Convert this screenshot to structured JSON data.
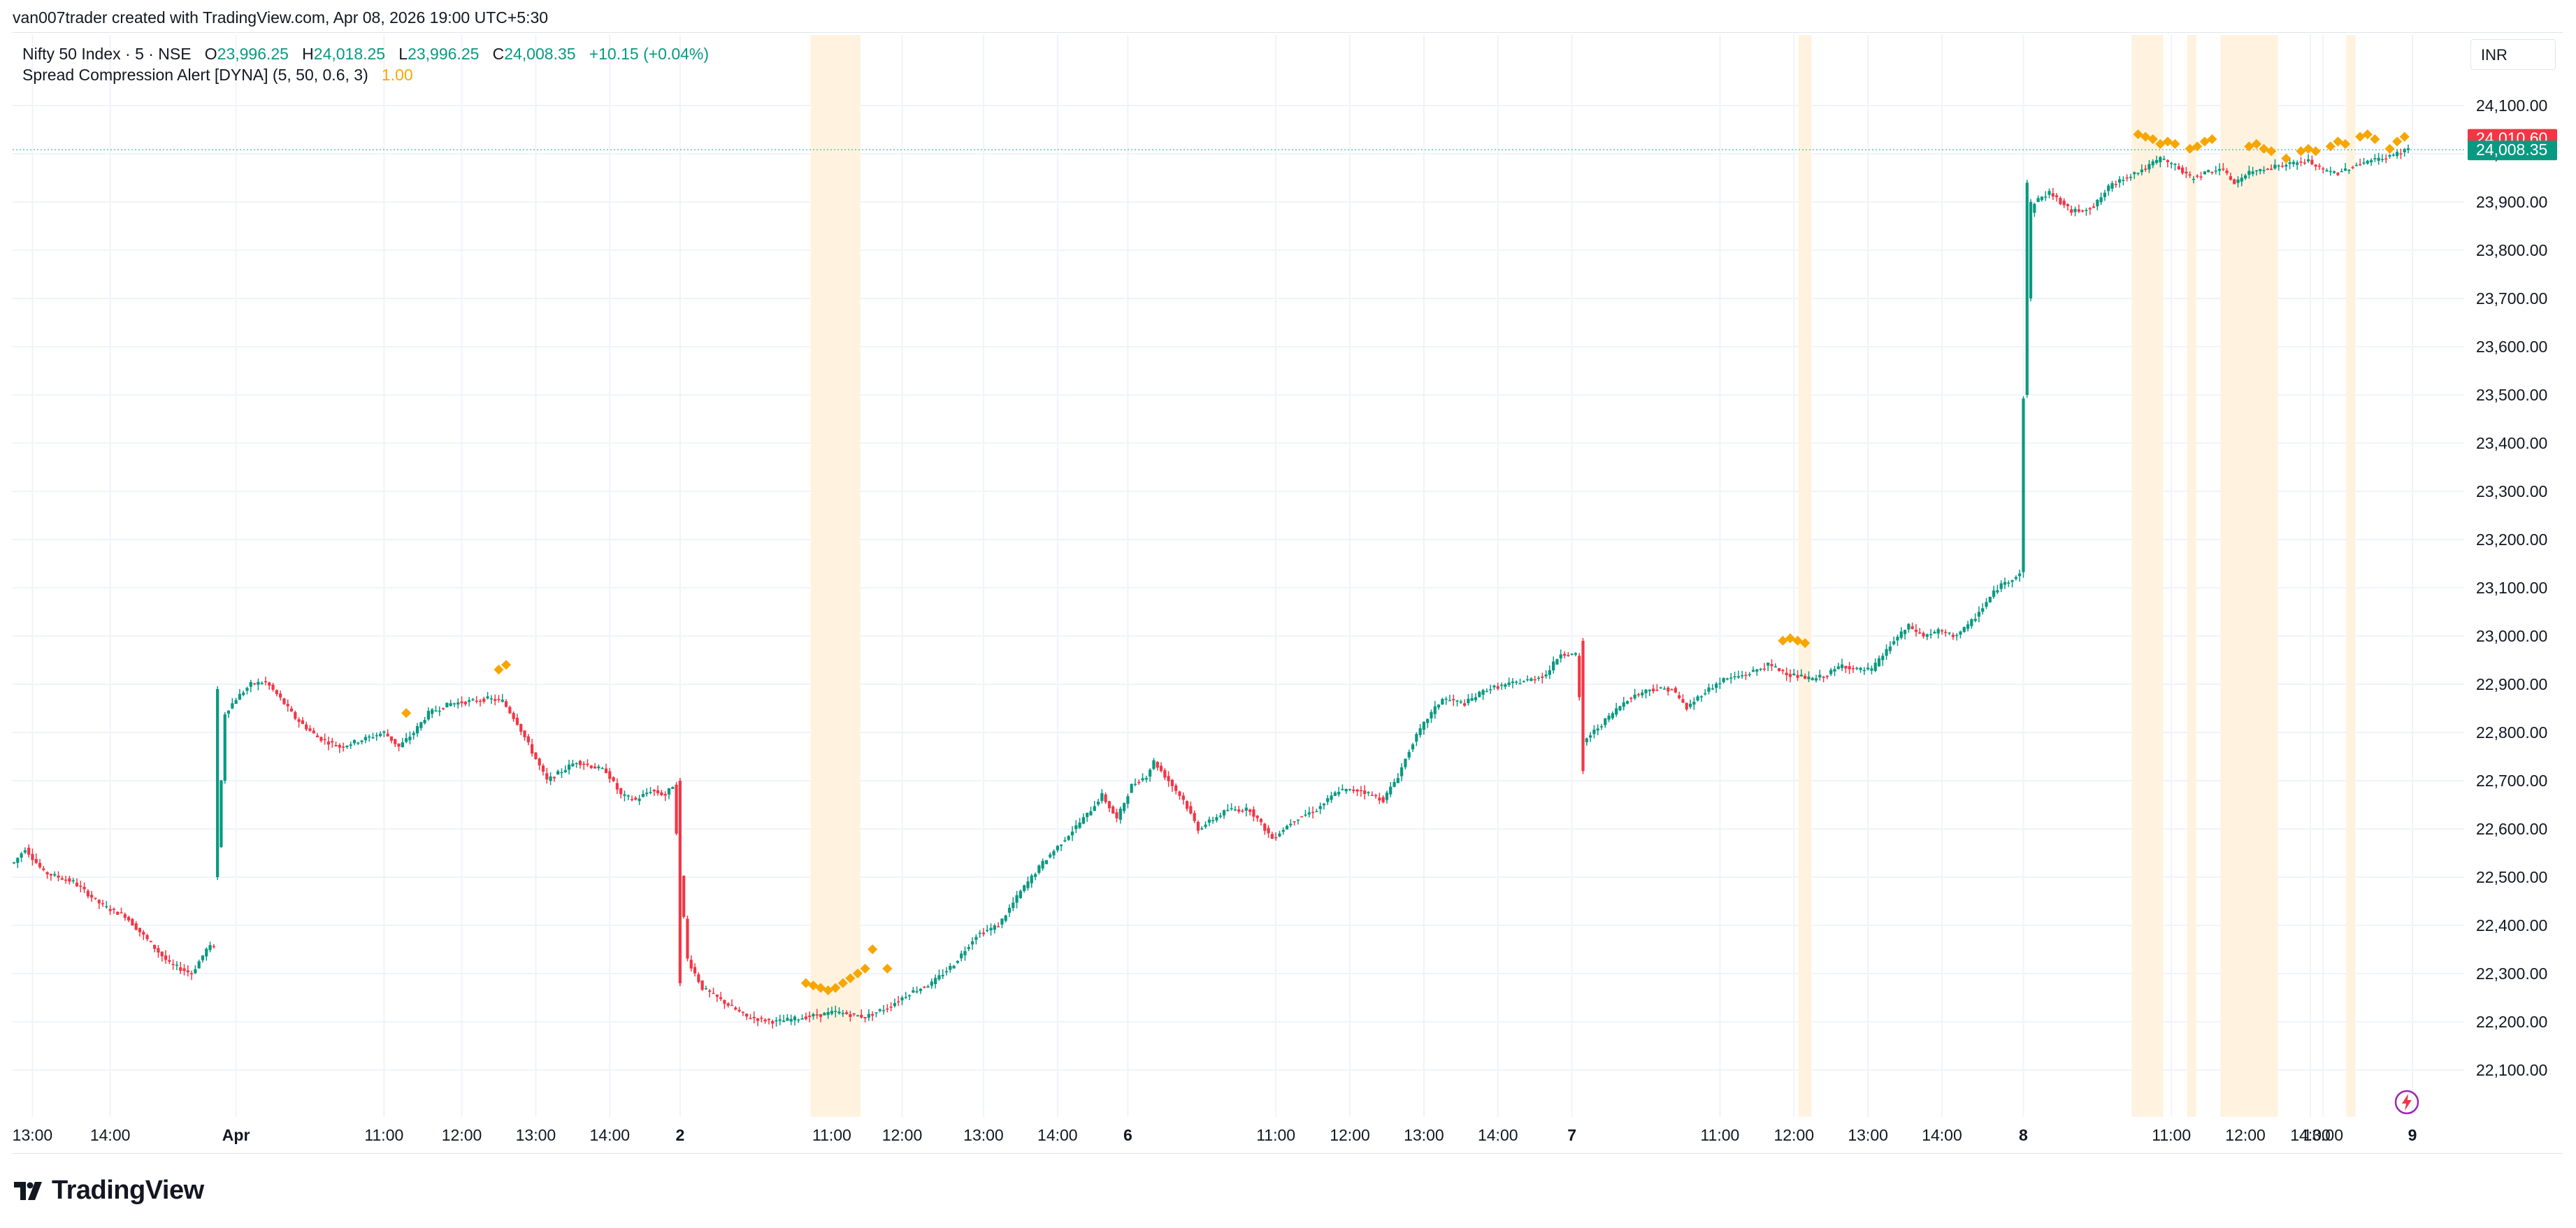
{
  "header": {
    "credit": "van007trader created with TradingView.com, Apr 08, 2026 19:00 UTC+5:30"
  },
  "legend": {
    "symbol": "Nifty 50 Index · 5 · NSE",
    "o_label": "O",
    "o_value": "23,996.25",
    "h_label": "H",
    "h_value": "24,018.25",
    "l_label": "L",
    "l_value": "23,996.25",
    "c_label": "C",
    "c_value": "24,008.35",
    "change": "+10.15 (+0.04%)",
    "indicator": "Spread Compression Alert [DYNA] (5, 50, 0.6, 3)",
    "indicator_value": "1.00"
  },
  "price_axis": {
    "currency": "INR",
    "labels": [
      "24,100.00",
      "24,000.00",
      "23,900.00",
      "23,800.00",
      "23,700.00",
      "23,600.00",
      "23,500.00",
      "23,400.00",
      "23,300.00",
      "23,200.00",
      "23,100.00",
      "23,000.00",
      "22,900.00",
      "22,800.00",
      "22,700.00",
      "22,600.00",
      "22,500.00",
      "22,400.00",
      "22,300.00",
      "22,200.00",
      "22,100.00"
    ],
    "badge_high": "24,010.60",
    "badge_last": "24,008.35"
  },
  "time_axis": {
    "labels": [
      "13:00",
      "14:00",
      "Apr",
      "11:00",
      "12:00",
      "13:00",
      "14:00",
      "2",
      "11:00",
      "12:00",
      "13:00",
      "14:00",
      "6",
      "11:00",
      "12:00",
      "13:00",
      "14:00",
      "7",
      "11:00",
      "12:00",
      "13:00",
      "14:00",
      "8",
      "11:00",
      "12:00",
      "13:00",
      "14:00",
      "9"
    ]
  },
  "footer": {
    "brand": "TradingView"
  },
  "colors": {
    "up": "#089981",
    "down": "#f23645",
    "marker": "#f7a600",
    "band": "#fff3e0",
    "grid": "#f0f3fa",
    "text": "#131722",
    "alert": "#9c27b0"
  },
  "chart_data": {
    "type": "candlestick",
    "symbol": "Nifty 50 Index",
    "interval": "5",
    "exchange": "NSE",
    "ylim": [
      22000,
      24150
    ],
    "y_ticks": [
      22100,
      22200,
      22300,
      22400,
      22500,
      22600,
      22700,
      22800,
      22900,
      23000,
      23100,
      23200,
      23300,
      23400,
      23500,
      23600,
      23700,
      23800,
      23900,
      24000,
      24100
    ],
    "grid": true,
    "last_price": 24008.35,
    "high_price": 24010.6,
    "series_close_keyframes": [
      [
        0,
        22530
      ],
      [
        3,
        22560
      ],
      [
        8,
        22510
      ],
      [
        16,
        22490
      ],
      [
        24,
        22440
      ],
      [
        30,
        22420
      ],
      [
        36,
        22370
      ],
      [
        42,
        22320
      ],
      [
        48,
        22300
      ],
      [
        52,
        22350
      ],
      [
        54,
        22360
      ],
      [
        55,
        22560
      ],
      [
        57,
        22840
      ],
      [
        60,
        22870
      ],
      [
        64,
        22900
      ],
      [
        68,
        22905
      ],
      [
        72,
        22870
      ],
      [
        76,
        22830
      ],
      [
        82,
        22790
      ],
      [
        88,
        22770
      ],
      [
        94,
        22785
      ],
      [
        100,
        22800
      ],
      [
        104,
        22770
      ],
      [
        108,
        22800
      ],
      [
        112,
        22840
      ],
      [
        118,
        22860
      ],
      [
        124,
        22865
      ],
      [
        128,
        22870
      ],
      [
        132,
        22865
      ],
      [
        136,
        22820
      ],
      [
        140,
        22760
      ],
      [
        144,
        22700
      ],
      [
        148,
        22720
      ],
      [
        152,
        22740
      ],
      [
        156,
        22730
      ],
      [
        160,
        22720
      ],
      [
        164,
        22670
      ],
      [
        168,
        22660
      ],
      [
        172,
        22680
      ],
      [
        176,
        22670
      ],
      [
        178,
        22690
      ],
      [
        180,
        22500
      ],
      [
        182,
        22330
      ],
      [
        186,
        22270
      ],
      [
        192,
        22240
      ],
      [
        198,
        22210
      ],
      [
        206,
        22200
      ],
      [
        214,
        22210
      ],
      [
        222,
        22220
      ],
      [
        230,
        22210
      ],
      [
        236,
        22230
      ],
      [
        242,
        22260
      ],
      [
        248,
        22280
      ],
      [
        254,
        22320
      ],
      [
        260,
        22380
      ],
      [
        266,
        22400
      ],
      [
        272,
        22470
      ],
      [
        278,
        22530
      ],
      [
        284,
        22580
      ],
      [
        290,
        22630
      ],
      [
        294,
        22670
      ],
      [
        298,
        22620
      ],
      [
        302,
        22690
      ],
      [
        306,
        22710
      ],
      [
        308,
        22740
      ],
      [
        312,
        22700
      ],
      [
        316,
        22660
      ],
      [
        320,
        22600
      ],
      [
        324,
        22620
      ],
      [
        328,
        22640
      ],
      [
        334,
        22640
      ],
      [
        340,
        22580
      ],
      [
        346,
        22620
      ],
      [
        352,
        22640
      ],
      [
        358,
        22680
      ],
      [
        364,
        22680
      ],
      [
        370,
        22660
      ],
      [
        374,
        22710
      ],
      [
        378,
        22780
      ],
      [
        382,
        22830
      ],
      [
        386,
        22870
      ],
      [
        392,
        22860
      ],
      [
        398,
        22890
      ],
      [
        404,
        22900
      ],
      [
        410,
        22910
      ],
      [
        414,
        22920
      ],
      [
        418,
        22965
      ],
      [
        422,
        22960
      ],
      [
        424,
        22780
      ],
      [
        428,
        22810
      ],
      [
        432,
        22840
      ],
      [
        436,
        22870
      ],
      [
        442,
        22890
      ],
      [
        448,
        22890
      ],
      [
        452,
        22850
      ],
      [
        456,
        22880
      ],
      [
        462,
        22910
      ],
      [
        468,
        22920
      ],
      [
        474,
        22940
      ],
      [
        480,
        22920
      ],
      [
        486,
        22910
      ],
      [
        490,
        22920
      ],
      [
        494,
        22940
      ],
      [
        498,
        22930
      ],
      [
        502,
        22930
      ],
      [
        504,
        22950
      ],
      [
        508,
        22990
      ],
      [
        512,
        23020
      ],
      [
        516,
        23000
      ],
      [
        520,
        23010
      ],
      [
        524,
        23000
      ],
      [
        528,
        23020
      ],
      [
        532,
        23060
      ],
      [
        536,
        23100
      ],
      [
        542,
        23130
      ],
      [
        544,
        23850
      ],
      [
        546,
        23900
      ],
      [
        550,
        23920
      ],
      [
        556,
        23880
      ],
      [
        562,
        23890
      ],
      [
        566,
        23930
      ],
      [
        570,
        23950
      ],
      [
        576,
        23970
      ],
      [
        580,
        23990
      ],
      [
        584,
        23975
      ],
      [
        588,
        23950
      ],
      [
        592,
        23960
      ],
      [
        596,
        23970
      ],
      [
        600,
        23940
      ],
      [
        604,
        23960
      ],
      [
        608,
        23970
      ],
      [
        612,
        23975
      ],
      [
        616,
        23980
      ],
      [
        620,
        23985
      ],
      [
        624,
        23965
      ],
      [
        628,
        23960
      ],
      [
        632,
        23975
      ],
      [
        636,
        23985
      ],
      [
        640,
        23990
      ],
      [
        644,
        24000
      ],
      [
        646,
        24008
      ]
    ],
    "spike_bars": [
      [
        55,
        22500,
        22890
      ],
      [
        180,
        22280,
        22700
      ],
      [
        424,
        22720,
        22990
      ],
      [
        544,
        23500,
        23940
      ],
      [
        545,
        23700,
        23900
      ]
    ],
    "marker_bars": [
      [
        106,
        22820
      ],
      [
        131,
        22910
      ],
      [
        133,
        22920
      ],
      [
        214,
        22260
      ],
      [
        216,
        22255
      ],
      [
        218,
        22250
      ],
      [
        220,
        22245
      ],
      [
        222,
        22250
      ],
      [
        224,
        22260
      ],
      [
        226,
        22270
      ],
      [
        228,
        22280
      ],
      [
        230,
        22290
      ],
      [
        232,
        22330
      ],
      [
        236,
        22290
      ],
      [
        478,
        22970
      ],
      [
        480,
        22975
      ],
      [
        482,
        22970
      ],
      [
        484,
        22965
      ],
      [
        574,
        24020
      ],
      [
        576,
        24015
      ],
      [
        578,
        24010
      ],
      [
        580,
        24000
      ],
      [
        582,
        24005
      ],
      [
        584,
        24000
      ],
      [
        588,
        23990
      ],
      [
        590,
        23995
      ],
      [
        592,
        24005
      ],
      [
        594,
        24010
      ],
      [
        604,
        23995
      ],
      [
        606,
        24000
      ],
      [
        608,
        23990
      ],
      [
        610,
        23985
      ],
      [
        614,
        23970
      ],
      [
        618,
        23985
      ],
      [
        620,
        23990
      ],
      [
        622,
        23985
      ],
      [
        626,
        23995
      ],
      [
        628,
        24005
      ],
      [
        630,
        24000
      ],
      [
        634,
        24015
      ],
      [
        636,
        24020
      ],
      [
        638,
        24010
      ],
      [
        642,
        23990
      ],
      [
        644,
        24005
      ],
      [
        646,
        24015
      ]
    ],
    "highlight_bands": [
      [
        216,
        228
      ],
      [
        483,
        485
      ],
      [
        573,
        580
      ],
      [
        588,
        589
      ],
      [
        597,
        611
      ],
      [
        631,
        632
      ]
    ],
    "bar_count": 648
  }
}
